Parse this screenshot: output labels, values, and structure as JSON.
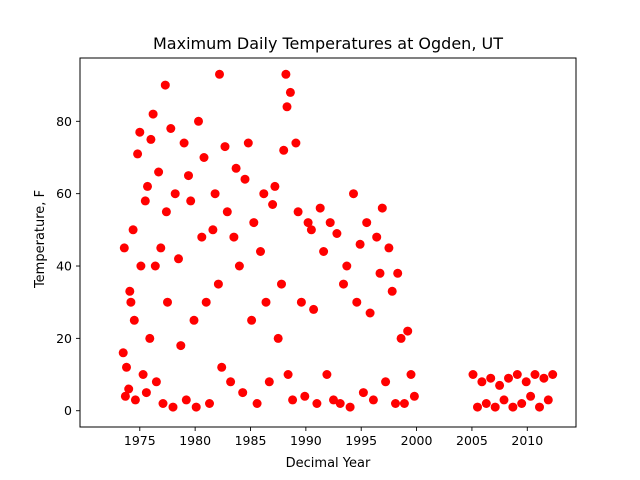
{
  "chart_data": {
    "type": "scatter",
    "title": "Maximum Daily Temperatures at Ogden, UT",
    "xlabel": "Decimal Year",
    "ylabel": "Temperature, F",
    "xlim": [
      1969.6,
      2014.4
    ],
    "ylim": [
      -4.5,
      97.5
    ],
    "xticks": [
      1975,
      1980,
      1985,
      1990,
      1995,
      2000,
      2005,
      2010
    ],
    "yticks": [
      0,
      20,
      40,
      60,
      80
    ],
    "grid": false,
    "legend": "none",
    "marker_color": "#ff0000",
    "series": [
      {
        "x": [
          1973.5,
          1973.6,
          1973.7,
          1973.8,
          1974.0,
          1974.1,
          1974.2,
          1974.4,
          1974.5,
          1974.6,
          1974.8,
          1975.0,
          1975.1,
          1975.3,
          1975.5,
          1975.6,
          1975.7,
          1975.9,
          1976.0,
          1976.2,
          1976.4,
          1976.5,
          1976.7,
          1976.9,
          1977.1,
          1977.3,
          1977.4,
          1977.5,
          1977.8,
          1978.0,
          1978.2,
          1978.5,
          1978.7,
          1979.0,
          1979.2,
          1979.4,
          1979.6,
          1979.9,
          1980.1,
          1980.3,
          1980.6,
          1980.8,
          1981.0,
          1981.3,
          1981.6,
          1981.8,
          1982.1,
          1982.2,
          1982.4,
          1982.7,
          1982.9,
          1983.2,
          1983.5,
          1983.7,
          1984.0,
          1984.3,
          1984.5,
          1984.8,
          1985.1,
          1985.3,
          1985.6,
          1985.9,
          1986.2,
          1986.4,
          1986.7,
          1987.0,
          1987.2,
          1987.5,
          1987.8,
          1988.0,
          1988.2,
          1988.3,
          1988.4,
          1988.6,
          1988.8,
          1989.1,
          1989.3,
          1989.6,
          1989.9,
          1990.2,
          1990.5,
          1990.7,
          1991.0,
          1991.3,
          1991.6,
          1991.9,
          1992.2,
          1992.5,
          1992.8,
          1993.1,
          1993.4,
          1993.7,
          1994.0,
          1994.3,
          1994.6,
          1994.9,
          1995.2,
          1995.5,
          1995.8,
          1996.1,
          1996.4,
          1996.7,
          1996.9,
          1997.2,
          1997.5,
          1997.8,
          1998.1,
          1998.3,
          1998.6,
          1998.9,
          1999.2,
          1999.5,
          1999.8,
          2005.1,
          2005.5,
          2005.9,
          2006.3,
          2006.7,
          2007.1,
          2007.5,
          2007.9,
          2008.3,
          2008.7,
          2009.1,
          2009.5,
          2009.9,
          2010.3,
          2010.7,
          2011.1,
          2011.5,
          2011.9,
          2012.3
        ],
        "y": [
          16,
          45,
          4,
          12,
          6,
          33,
          30,
          50,
          25,
          3,
          71,
          77,
          40,
          10,
          58,
          5,
          62,
          20,
          75,
          82,
          40,
          8,
          66,
          45,
          2,
          90,
          55,
          30,
          78,
          1,
          60,
          42,
          18,
          74,
          3,
          65,
          58,
          25,
          1,
          80,
          48,
          70,
          30,
          2,
          50,
          60,
          35,
          93,
          12,
          73,
          55,
          8,
          48,
          67,
          40,
          5,
          64,
          74,
          25,
          52,
          2,
          44,
          60,
          30,
          8,
          57,
          62,
          20,
          35,
          72,
          93,
          84,
          10,
          88,
          3,
          74,
          55,
          30,
          4,
          52,
          50,
          28,
          2,
          56,
          44,
          10,
          52,
          3,
          49,
          2,
          35,
          40,
          1,
          60,
          30,
          46,
          5,
          52,
          27,
          3,
          48,
          38,
          56,
          8,
          45,
          33,
          2,
          38,
          20,
          2,
          22,
          10,
          4,
          10,
          1,
          8,
          2,
          9,
          1,
          7,
          3,
          9,
          1,
          10,
          2,
          8,
          4,
          10,
          1,
          9,
          3,
          10
        ]
      }
    ]
  }
}
